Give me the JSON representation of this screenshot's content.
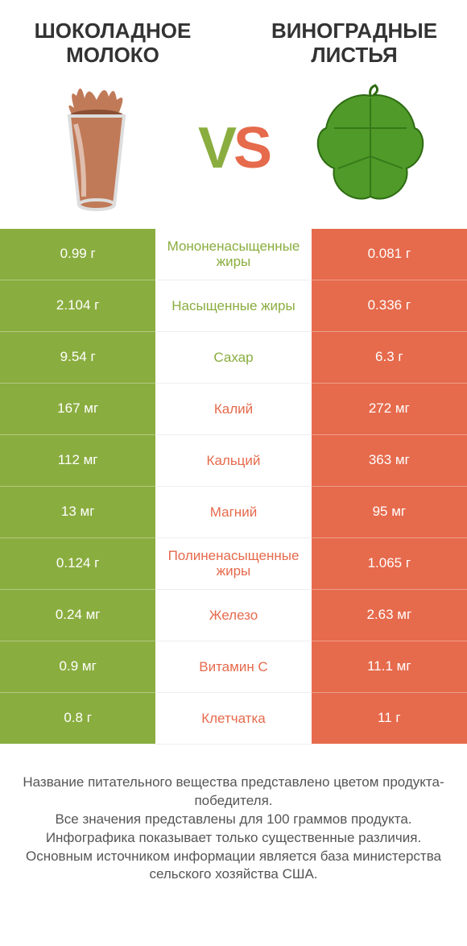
{
  "colors": {
    "green": "#8aad3f",
    "orange": "#e66a4c",
    "title": "#333333",
    "footer": "#555555",
    "white": "#ffffff",
    "chocolate": "#c07a58",
    "chocolate_dark": "#8a5034",
    "leaf_green": "#4f9a28",
    "leaf_dark": "#2d6b12"
  },
  "products": {
    "left": {
      "title": "ШОКОЛАДНОЕ МОЛОКО",
      "icon": "chocolate-milk"
    },
    "right": {
      "title": "ВИНОГРАДНЫЕ ЛИСТЬЯ",
      "icon": "grape-leaf"
    }
  },
  "vs_label": "VS",
  "rows": [
    {
      "label": "Мононенасыщенные жиры",
      "left": "0.99 г",
      "right": "0.081 г",
      "winner": "left"
    },
    {
      "label": "Насыщенные жиры",
      "left": "2.104 г",
      "right": "0.336 г",
      "winner": "left"
    },
    {
      "label": "Сахар",
      "left": "9.54 г",
      "right": "6.3 г",
      "winner": "left"
    },
    {
      "label": "Калий",
      "left": "167 мг",
      "right": "272 мг",
      "winner": "right"
    },
    {
      "label": "Кальций",
      "left": "112 мг",
      "right": "363 мг",
      "winner": "right"
    },
    {
      "label": "Магний",
      "left": "13 мг",
      "right": "95 мг",
      "winner": "right"
    },
    {
      "label": "Полиненасыщенные жиры",
      "left": "0.124 г",
      "right": "1.065 г",
      "winner": "right"
    },
    {
      "label": "Железо",
      "left": "0.24 мг",
      "right": "2.63 мг",
      "winner": "right"
    },
    {
      "label": "Витамин C",
      "left": "0.9 мг",
      "right": "11.1 мг",
      "winner": "right"
    },
    {
      "label": "Клетчатка",
      "left": "0.8 г",
      "right": "11 г",
      "winner": "right"
    }
  ],
  "footer_lines": [
    "Название питательного вещества представлено цветом продукта-победителя.",
    "Все значения представлены для 100 граммов продукта.",
    "Инфографика показывает только существенные различия.",
    "Основным источником информации является база министерства сельского хозяйства США."
  ]
}
